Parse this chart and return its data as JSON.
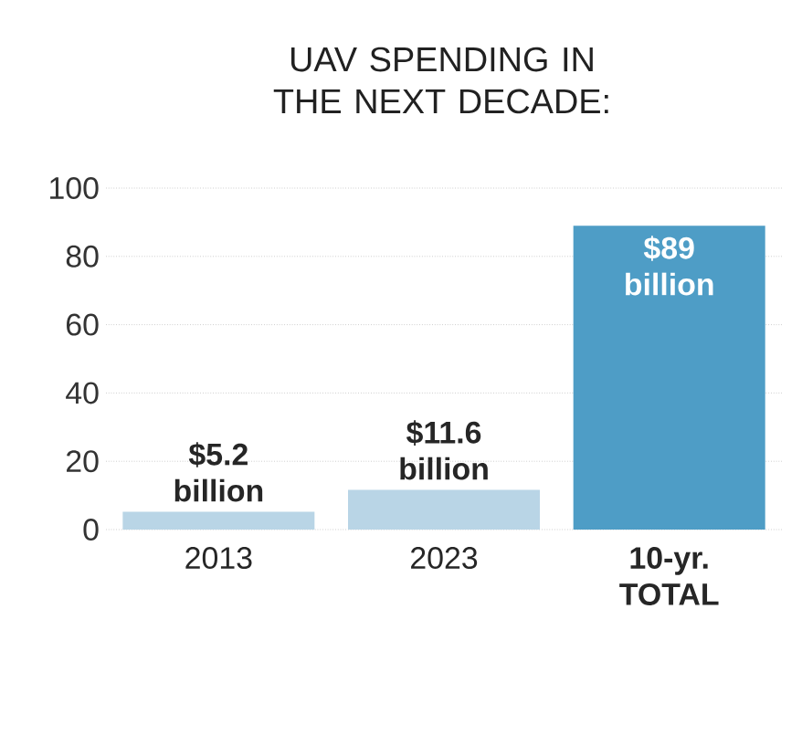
{
  "chart_data": {
    "type": "bar",
    "title": "UAV SPENDING IN THE NEXT DECADE:",
    "categories": [
      "2013",
      "2023",
      "10-yr. TOTAL"
    ],
    "values": [
      5.2,
      11.6,
      89
    ],
    "colors": [
      "#b9d5e6",
      "#b9d5e6",
      "#4e9dc6"
    ],
    "value_labels": [
      "$5.2 billion",
      "$11.6 billion",
      "$89 billion"
    ],
    "ylim": [
      0,
      100
    ],
    "yticks": [
      0,
      20,
      40,
      60,
      80,
      100
    ],
    "grid": "y"
  }
}
